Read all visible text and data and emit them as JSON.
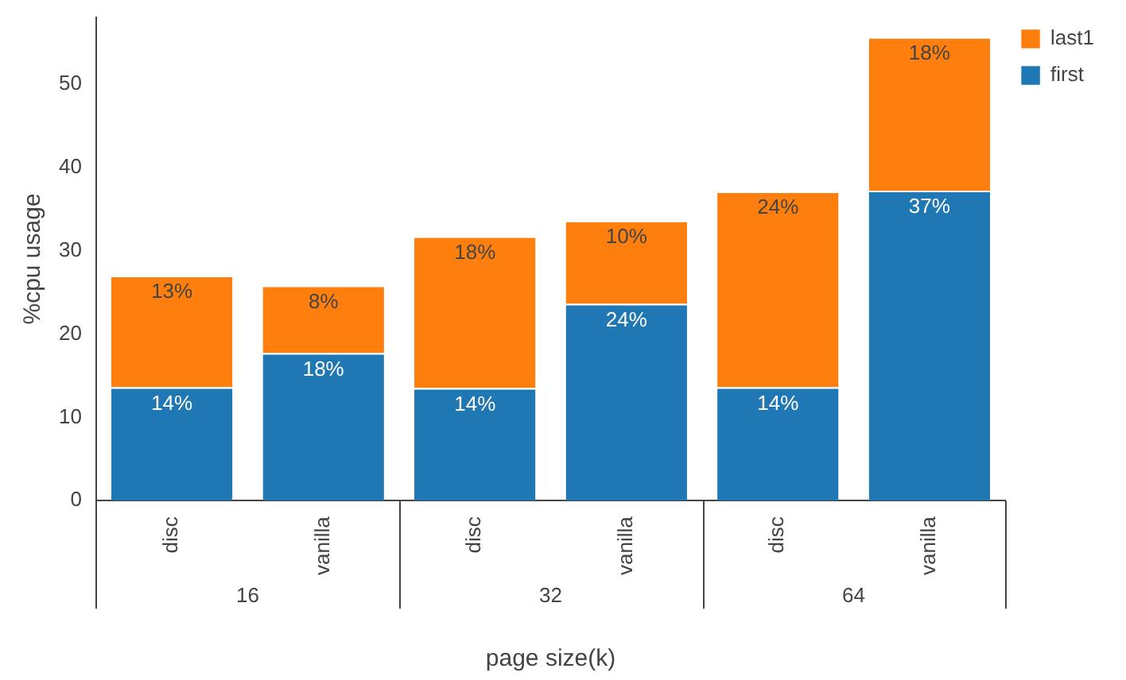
{
  "chart_data": {
    "type": "bar",
    "stacked": true,
    "xlabel": "page size(k)",
    "ylabel": "%cpu usage",
    "categories": [
      "disc",
      "vanilla",
      "disc",
      "vanilla",
      "disc",
      "vanilla"
    ],
    "annotations": [
      "16",
      "32",
      "64"
    ],
    "series": [
      {
        "name": "first",
        "color": "#1f77b4",
        "values": [
          13.6,
          17.7,
          13.5,
          23.6,
          13.6,
          37.2
        ],
        "value_labels": [
          "14%",
          "18%",
          "14%",
          "24%",
          "14%",
          "37%"
        ]
      },
      {
        "name": "last1",
        "color": "#ff7f0e",
        "values": [
          13.4,
          8.1,
          18.2,
          10.0,
          23.5,
          18.4
        ],
        "value_labels": [
          "13%",
          "8%",
          "18%",
          "10%",
          "24%",
          "18%"
        ]
      }
    ],
    "ylim": [
      0,
      58
    ],
    "yticks": [
      0,
      10,
      20,
      30,
      40,
      50
    ],
    "grid": false,
    "legend": "top right"
  }
}
